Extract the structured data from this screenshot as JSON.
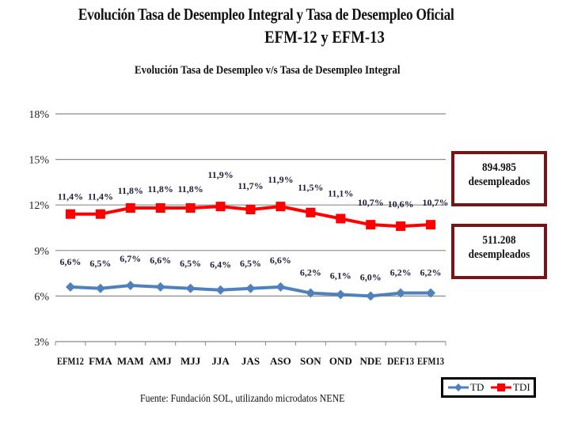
{
  "header": {
    "title_line1": "Evolución Tasa de Desempleo Integral y Tasa de Desempleo Oficial",
    "title_line2": "EFM-12 y EFM-13",
    "subtitle": "Evolución Tasa de Desempleo v/s Tasa de Desempleo Integral"
  },
  "callouts": {
    "tdi": {
      "number": "894.985",
      "text": "desempleados"
    },
    "td": {
      "number": "511.208",
      "text": "desempleados"
    },
    "border_color": "#7a1315"
  },
  "source": "Fuente: Fundación SOL, utilizando microdatos NENE",
  "chart_data": {
    "type": "line",
    "title": "Evolución Tasa de Desempleo v/s Tasa de Desempleo Integral",
    "xlabel": "",
    "ylabel": "",
    "categories": [
      "EFM12",
      "FMA",
      "MAM",
      "AMJ",
      "MJJ",
      "JJA",
      "JAS",
      "ASO",
      "SON",
      "OND",
      "NDE",
      "DEF13",
      "EFM13"
    ],
    "yticks": [
      "3%",
      "6%",
      "9%",
      "12%",
      "15%",
      "18%"
    ],
    "ytick_values": [
      3,
      6,
      9,
      12,
      15,
      18
    ],
    "ylim": [
      3,
      18
    ],
    "grid": true,
    "legend_position": "bottom-right",
    "series": [
      {
        "name": "TD",
        "color": "#4f81bd",
        "marker": "diamond",
        "values": [
          6.6,
          6.5,
          6.7,
          6.6,
          6.5,
          6.4,
          6.5,
          6.6,
          6.2,
          6.1,
          6.0,
          6.2,
          6.2
        ],
        "labels": [
          "6,6%",
          "6,5%",
          "6,7%",
          "6,6%",
          "6,5%",
          "6,4%",
          "6,5%",
          "6,6%",
          "6,2%",
          "6,1%",
          "6,0%",
          "6,2%",
          "6,2%"
        ]
      },
      {
        "name": "TDI",
        "color": "#ff0000",
        "marker": "square",
        "values": [
          11.4,
          11.4,
          11.8,
          11.8,
          11.8,
          11.9,
          11.7,
          11.9,
          11.5,
          11.1,
          10.7,
          10.6,
          10.7
        ],
        "labels": [
          "11,4%",
          "11,4%",
          "11,8%",
          "11,8%",
          "11,8%",
          "11,9%",
          "11,7%",
          "11,9%",
          "11,5%",
          "11,1%",
          "10,7%",
          "10,6%",
          "10,7%"
        ]
      }
    ]
  }
}
